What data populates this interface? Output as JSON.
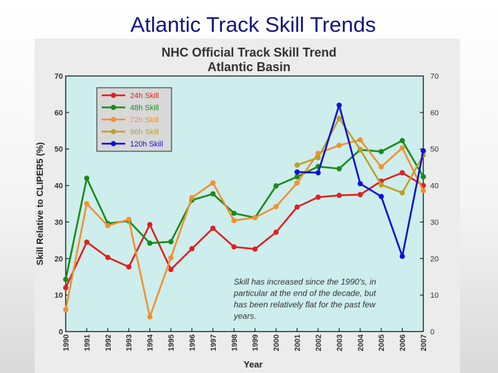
{
  "slide_title": "Atlantic Track Skill Trends",
  "chart_data": {
    "type": "line",
    "title": "NHC Official Track Skill Trend",
    "subtitle": "Atlantic Basin",
    "xlabel": "Year",
    "ylabel": "Skill Relative to CLIPER5 (%)",
    "xlim": [
      1990,
      2007
    ],
    "ylim": [
      0,
      70
    ],
    "yticks": [
      0,
      10,
      20,
      30,
      40,
      50,
      60,
      70
    ],
    "categories": [
      "1990",
      "1991",
      "1992",
      "1993",
      "1994",
      "1995",
      "1996",
      "1997",
      "1998",
      "1999",
      "2000",
      "2001",
      "2002",
      "2003",
      "2004",
      "2005",
      "2006",
      "2007"
    ],
    "grid": false,
    "legend_position": "top-left",
    "background": "#cdeeed",
    "series": [
      {
        "name": "24h Skill",
        "color": "#e02020",
        "x": [
          1990,
          1991,
          1992,
          1993,
          1994,
          1995,
          1996,
          1997,
          1998,
          1999,
          2000,
          2001,
          2002,
          2003,
          2004,
          2005,
          2006,
          2007
        ],
        "values": [
          12,
          24.5,
          20.3,
          17.7,
          29.3,
          17,
          22.7,
          28.3,
          23.2,
          22.6,
          27.2,
          34.1,
          36.8,
          37.3,
          37.5,
          41.2,
          43.5,
          40
        ]
      },
      {
        "name": "48h Skill",
        "color": "#1a8a1a",
        "x": [
          1990,
          1991,
          1992,
          1993,
          1994,
          1995,
          1996,
          1997,
          1998,
          1999,
          2000,
          2001,
          2002,
          2003,
          2004,
          2005,
          2006,
          2007
        ],
        "values": [
          14.3,
          42,
          29.6,
          30.3,
          24.2,
          24.6,
          36,
          37.7,
          32.4,
          31.2,
          39.9,
          42.4,
          45.2,
          44.6,
          49.8,
          49.3,
          52.3,
          42.4
        ]
      },
      {
        "name": "72h Skill",
        "color": "#f29030",
        "x": [
          1990,
          1991,
          1992,
          1993,
          1994,
          1995,
          1996,
          1997,
          1998,
          1999,
          2000,
          2001,
          2002,
          2003,
          2004,
          2005,
          2006,
          2007
        ],
        "values": [
          6,
          35,
          29,
          30.7,
          4,
          20.2,
          36.7,
          40.7,
          30.4,
          31.2,
          34.2,
          40.7,
          48.8,
          51,
          52.5,
          45.1,
          50.3,
          38.6
        ]
      },
      {
        "name": "96h Skill",
        "color": "#bfa02a",
        "x": [
          2001,
          2002,
          2003,
          2004,
          2005,
          2006,
          2007
        ],
        "values": [
          45.6,
          47.6,
          58.4,
          49.9,
          40.2,
          38,
          48.3
        ]
      },
      {
        "name": "120h Skill",
        "color": "#1010d8",
        "x": [
          2001,
          2002,
          2003,
          2004,
          2005,
          2006,
          2007
        ],
        "values": [
          43.7,
          43.5,
          62,
          40.5,
          37,
          20.6,
          49.5
        ]
      }
    ],
    "annotation": "Skill has increased since the 1990's, in particular at the end of the decade, but has been relatively flat for the past few years."
  }
}
